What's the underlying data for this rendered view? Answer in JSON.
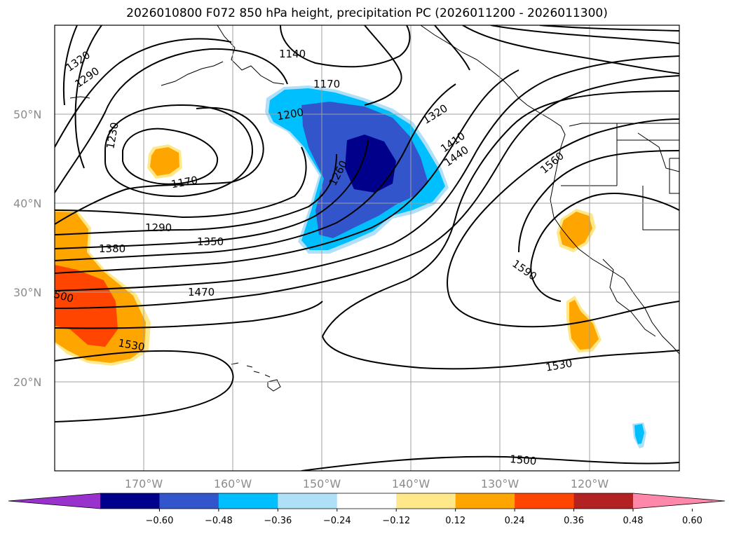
{
  "title": "2026010800 F072 850 hPa height, precipitation PC (2026011200 - 2026011300)",
  "map": {
    "lat_labels": [
      "50°N",
      "40°N",
      "30°N",
      "20°N"
    ],
    "lon_labels": [
      "170°W",
      "160°W",
      "150°W",
      "140°W",
      "130°W",
      "120°W"
    ],
    "contour_labels": [
      "1320",
      "1290",
      "1230",
      "1140",
      "1170",
      "1200",
      "1260",
      "1320",
      "1410",
      "1440",
      "1560",
      "1170",
      "1290",
      "1350",
      "1380",
      "1470",
      "500",
      "1530",
      "1590",
      "1530",
      "1500"
    ]
  },
  "colorbar": {
    "ticks": [
      "−0.60",
      "−0.48",
      "−0.36",
      "−0.24",
      "−0.12",
      "0.12",
      "0.24",
      "0.36",
      "0.48",
      "0.60"
    ],
    "colors": [
      "#9932cc",
      "#00008b",
      "#3355cc",
      "#00bfff",
      "#b0e0f8",
      "#ffffff",
      "#ffe88a",
      "#ffa500",
      "#ff4500",
      "#b22222",
      "#ff88aa"
    ]
  },
  "colors": {
    "contour": "#000000",
    "grid": "#a0a0a0",
    "coast": "#000000"
  }
}
